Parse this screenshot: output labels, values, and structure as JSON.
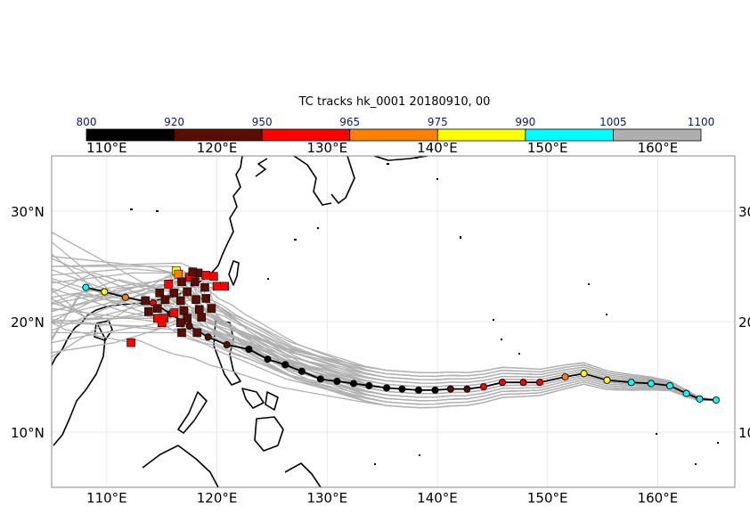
{
  "title": "TC tracks  hk_0001 20180910, 00",
  "colorbar": {
    "thresholds": [
      "800",
      "920",
      "950",
      "965",
      "975",
      "990",
      "1005",
      "1100"
    ],
    "colors": [
      "#000000",
      "#5a0e00",
      "#ff0000",
      "#ff8000",
      "#ffff00",
      "#00ffff",
      "#b0b0b0"
    ]
  },
  "map": {
    "lon_range": [
      105,
      167
    ],
    "lat_range": [
      5,
      35
    ],
    "lon_ticks": [
      "110°E",
      "120°E",
      "130°E",
      "140°E",
      "150°E",
      "160°E"
    ],
    "lat_ticks": [
      "30°N",
      "20°N",
      "10°N"
    ],
    "right_lat_ticks": [
      "30",
      "20",
      "10"
    ],
    "ensemble_color": "#b0b0b0",
    "coast_color": "#000000"
  },
  "observed_track": [
    {
      "lon": 165.3,
      "lat": 12.9,
      "p": 1000
    },
    {
      "lon": 163.8,
      "lat": 13.0,
      "p": 998
    },
    {
      "lon": 162.6,
      "lat": 13.5,
      "p": 997
    },
    {
      "lon": 161.1,
      "lat": 14.2,
      "p": 997
    },
    {
      "lon": 159.4,
      "lat": 14.4,
      "p": 996
    },
    {
      "lon": 157.6,
      "lat": 14.5,
      "p": 995
    },
    {
      "lon": 155.4,
      "lat": 14.7,
      "p": 985
    },
    {
      "lon": 153.3,
      "lat": 15.3,
      "p": 975
    },
    {
      "lon": 151.6,
      "lat": 15.0,
      "p": 970
    },
    {
      "lon": 149.3,
      "lat": 14.5,
      "p": 960
    },
    {
      "lon": 147.8,
      "lat": 14.5,
      "p": 955
    },
    {
      "lon": 145.9,
      "lat": 14.5,
      "p": 955
    },
    {
      "lon": 144.2,
      "lat": 14.1,
      "p": 953
    },
    {
      "lon": 142.7,
      "lat": 13.9,
      "p": 945
    },
    {
      "lon": 141.2,
      "lat": 13.9,
      "p": 935
    },
    {
      "lon": 139.8,
      "lat": 13.8,
      "p": 910
    },
    {
      "lon": 138.3,
      "lat": 13.8,
      "p": 905
    },
    {
      "lon": 136.8,
      "lat": 13.9,
      "p": 905
    },
    {
      "lon": 135.4,
      "lat": 14.0,
      "p": 905
    },
    {
      "lon": 133.8,
      "lat": 14.2,
      "p": 905
    },
    {
      "lon": 132.4,
      "lat": 14.4,
      "p": 905
    },
    {
      "lon": 130.9,
      "lat": 14.6,
      "p": 905
    },
    {
      "lon": 129.4,
      "lat": 14.8,
      "p": 905
    },
    {
      "lon": 127.7,
      "lat": 15.5,
      "p": 905
    },
    {
      "lon": 126.2,
      "lat": 16.1,
      "p": 905
    },
    {
      "lon": 124.6,
      "lat": 16.6,
      "p": 905
    },
    {
      "lon": 122.9,
      "lat": 17.5,
      "p": 910
    },
    {
      "lon": 120.9,
      "lat": 17.9,
      "p": 925
    },
    {
      "lon": 119.2,
      "lat": 18.6,
      "p": 930
    },
    {
      "lon": 117.5,
      "lat": 19.6,
      "p": 935
    },
    {
      "lon": 115.8,
      "lat": 20.7,
      "p": 940
    },
    {
      "lon": 114.2,
      "lat": 21.7,
      "p": 955
    },
    {
      "lon": 111.7,
      "lat": 22.2,
      "p": 970
    },
    {
      "lon": 109.8,
      "lat": 22.7,
      "p": 980
    },
    {
      "lon": 108.1,
      "lat": 23.1,
      "p": 995
    }
  ],
  "forecast_landfalls": [
    {
      "lon": 116.3,
      "lat": 24.6,
      "p": 980
    },
    {
      "lon": 116.5,
      "lat": 24.3,
      "p": 970
    },
    {
      "lon": 117.5,
      "lat": 24.0,
      "p": 960
    },
    {
      "lon": 118.3,
      "lat": 24.4,
      "p": 930
    },
    {
      "lon": 119.0,
      "lat": 24.2,
      "p": 955
    },
    {
      "lon": 119.7,
      "lat": 24.1,
      "p": 955
    },
    {
      "lon": 120.0,
      "lat": 23.2,
      "p": 955
    },
    {
      "lon": 115.6,
      "lat": 23.4,
      "p": 955
    },
    {
      "lon": 116.8,
      "lat": 23.6,
      "p": 940
    },
    {
      "lon": 118.0,
      "lat": 23.6,
      "p": 930
    },
    {
      "lon": 118.9,
      "lat": 23.1,
      "p": 930
    },
    {
      "lon": 117.3,
      "lat": 22.7,
      "p": 930
    },
    {
      "lon": 116.1,
      "lat": 22.6,
      "p": 930
    },
    {
      "lon": 114.8,
      "lat": 22.6,
      "p": 930
    },
    {
      "lon": 115.3,
      "lat": 22.0,
      "p": 930
    },
    {
      "lon": 116.7,
      "lat": 21.9,
      "p": 930
    },
    {
      "lon": 118.1,
      "lat": 22.0,
      "p": 930
    },
    {
      "lon": 119.0,
      "lat": 22.1,
      "p": 930
    },
    {
      "lon": 113.5,
      "lat": 21.9,
      "p": 930
    },
    {
      "lon": 114.6,
      "lat": 21.2,
      "p": 930
    },
    {
      "lon": 117.0,
      "lat": 21.0,
      "p": 930
    },
    {
      "lon": 118.4,
      "lat": 21.1,
      "p": 930
    },
    {
      "lon": 119.5,
      "lat": 21.2,
      "p": 930
    },
    {
      "lon": 116.1,
      "lat": 20.8,
      "p": 955
    },
    {
      "lon": 115.2,
      "lat": 20.3,
      "p": 955
    },
    {
      "lon": 114.6,
      "lat": 20.3,
      "p": 955
    },
    {
      "lon": 117.3,
      "lat": 20.3,
      "p": 930
    },
    {
      "lon": 118.6,
      "lat": 20.4,
      "p": 930
    },
    {
      "lon": 116.7,
      "lat": 19.9,
      "p": 930
    },
    {
      "lon": 115.0,
      "lat": 19.9,
      "p": 955
    },
    {
      "lon": 113.8,
      "lat": 20.9,
      "p": 930
    },
    {
      "lon": 116.8,
      "lat": 19.0,
      "p": 930
    },
    {
      "lon": 118.2,
      "lat": 19.0,
      "p": 930
    },
    {
      "lon": 112.2,
      "lat": 18.1,
      "p": 955
    },
    {
      "lon": 120.7,
      "lat": 23.2,
      "p": 955
    },
    {
      "lon": 117.8,
      "lat": 24.5,
      "p": 930
    }
  ]
}
